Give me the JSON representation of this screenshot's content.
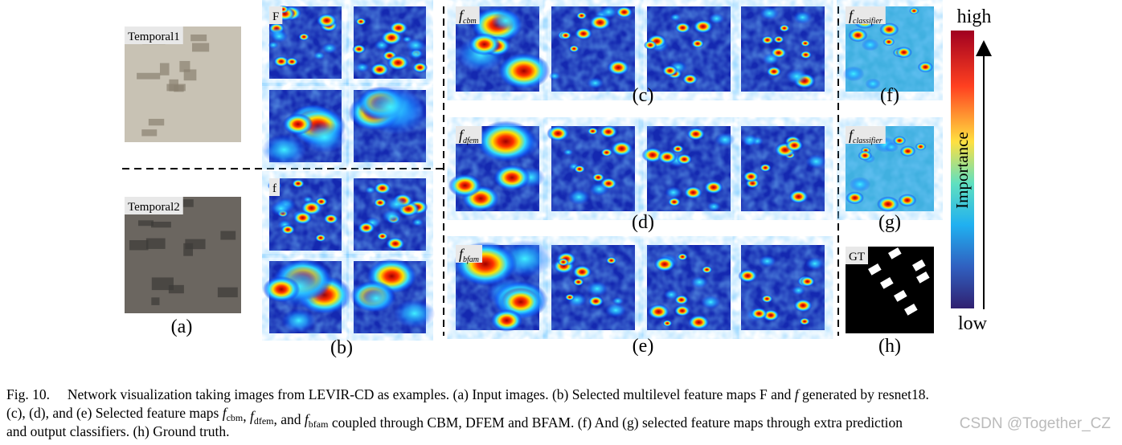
{
  "figure": {
    "panel_a": {
      "temporal1": "Temporal1",
      "temporal2": "Temporal2",
      "label": "(a)"
    },
    "panel_b": {
      "tag_top": "F",
      "tag_bottom": "f",
      "label": "(b)"
    },
    "panel_c": {
      "tag": {
        "symbol": "f",
        "sub": "cbm"
      },
      "label": "(c)"
    },
    "panel_d": {
      "tag": {
        "symbol": "f",
        "sub": "dfem"
      },
      "label": "(d)"
    },
    "panel_e": {
      "tag": {
        "symbol": "f",
        "sub": "bfam"
      },
      "label": "(e)"
    },
    "panel_f": {
      "tag": {
        "symbol": "f",
        "sub": "classifier"
      },
      "label": "(f)"
    },
    "panel_g": {
      "tag": {
        "symbol": "f",
        "sub": "classifier"
      },
      "label": "(g)"
    },
    "panel_h": {
      "tag": "GT",
      "label": "(h)"
    },
    "colorbar": {
      "high": "high",
      "low": "low",
      "title": "Importance"
    }
  },
  "caption": {
    "lines": [
      [
        "Fig. 10.     Network visualization taking images from LEVIR-CD as examples. (a) Input images. (b) Selected multilevel feature maps F and ",
        {
          "symbol": "f"
        },
        " generated by resnet18."
      ],
      [
        "(c), (d), and (e) Selected feature maps ",
        {
          "symbol": "f",
          "sub": "cbm"
        },
        ", ",
        {
          "symbol": "f",
          "sub": "dfem"
        },
        ", and ",
        {
          "symbol": "f",
          "sub": "bfam"
        },
        " coupled through CBM, DFEM and BFAM. (f) And (g) selected feature maps through extra prediction"
      ],
      [
        "and output classifiers. (h) Ground truth."
      ]
    ]
  },
  "watermark": "CSDN @Together_CZ"
}
